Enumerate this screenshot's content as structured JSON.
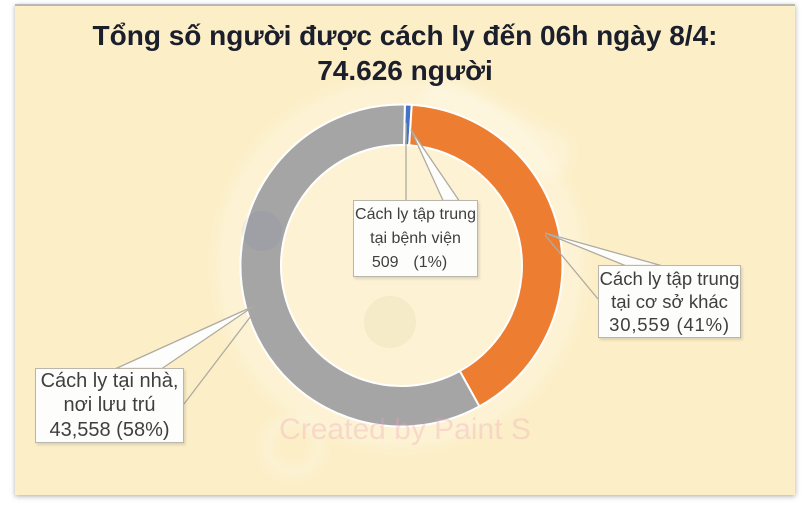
{
  "chart_data": {
    "type": "pie",
    "donut": true,
    "title": "Tổng số người được cách ly đến 06h ngày 8/4: 74.626 người",
    "title_lines": [
      "Tổng số người được cách ly đến 06h ngày 8/4:",
      "74.626 người"
    ],
    "categories": [
      "Cách ly tập trung tại bệnh viện",
      "Cách ly tập trung tại cơ sở khác",
      "Cách ly tại nhà, nơi lưu trú"
    ],
    "values": [
      509,
      30559,
      43558
    ],
    "percent_labels": [
      "1%",
      "41%",
      "58%"
    ],
    "total": 74626,
    "colors": [
      "#4472c4",
      "#ed7d31",
      "#a5a5a5"
    ],
    "start_angle_deg": 1.2,
    "direction": "clockwise",
    "legend": "none"
  },
  "callouts": [
    {
      "id": "benh-vien",
      "lines": [
        "Cách ly tập trung",
        "tại bệnh viện",
        "509  (1%)"
      ]
    },
    {
      "id": "co-so-khac",
      "lines": [
        "Cách ly tập trung",
        "tại cơ sở khác",
        "30,559 (41%)"
      ]
    },
    {
      "id": "nha",
      "lines": [
        "Cách ly tại nhà,",
        "nơi lưu trú",
        "43,558 (58%)"
      ]
    }
  ],
  "watermark": {
    "text": "Created by Paint S"
  },
  "colors": {
    "page_background": "#ffffff",
    "canvas_background": "#fcefc8",
    "title_text": "#1b1e2b",
    "label_text": "#3f3f3f",
    "callout_line": "#b0aba1",
    "box_border": "#bab6ae",
    "box_background": "#fdfdfb",
    "slice_border": "#ffffff"
  }
}
